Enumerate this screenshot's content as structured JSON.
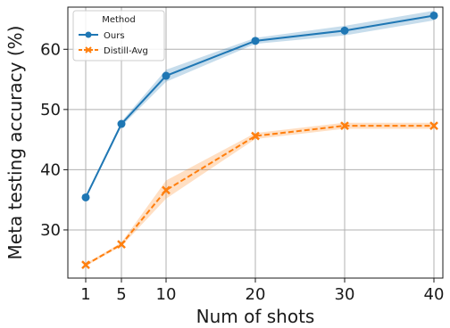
{
  "chart_data": {
    "type": "line",
    "title": "",
    "xlabel": "Num of shots",
    "ylabel": "Meta testing accuracy (%)",
    "x": [
      1,
      5,
      10,
      20,
      30,
      40
    ],
    "xticks": [
      1,
      5,
      10,
      20,
      30,
      40
    ],
    "yticks": [
      30,
      40,
      50,
      60
    ],
    "xlim": [
      -1,
      41
    ],
    "ylim": [
      22,
      67
    ],
    "grid": true,
    "legend": {
      "title": "Method",
      "placement": "top-left"
    },
    "series": [
      {
        "name": "Ours",
        "color": "#1f77b4",
        "marker": "circle",
        "linestyle": "solid",
        "values": [
          35.4,
          47.6,
          55.6,
          61.4,
          63.1,
          65.6
        ],
        "band_low": [
          35.2,
          47.2,
          54.6,
          60.9,
          62.3,
          64.8
        ],
        "band_high": [
          35.6,
          48.0,
          56.6,
          61.9,
          63.9,
          66.4
        ]
      },
      {
        "name": "Distill-Avg",
        "color": "#ff7f0e",
        "marker": "x",
        "linestyle": "dashed",
        "values": [
          24.2,
          27.6,
          36.6,
          45.6,
          47.3,
          47.3
        ],
        "band_low": [
          24.0,
          27.3,
          35.2,
          45.1,
          46.8,
          46.8
        ],
        "band_high": [
          24.4,
          27.9,
          38.2,
          46.1,
          47.8,
          47.8
        ]
      }
    ]
  }
}
